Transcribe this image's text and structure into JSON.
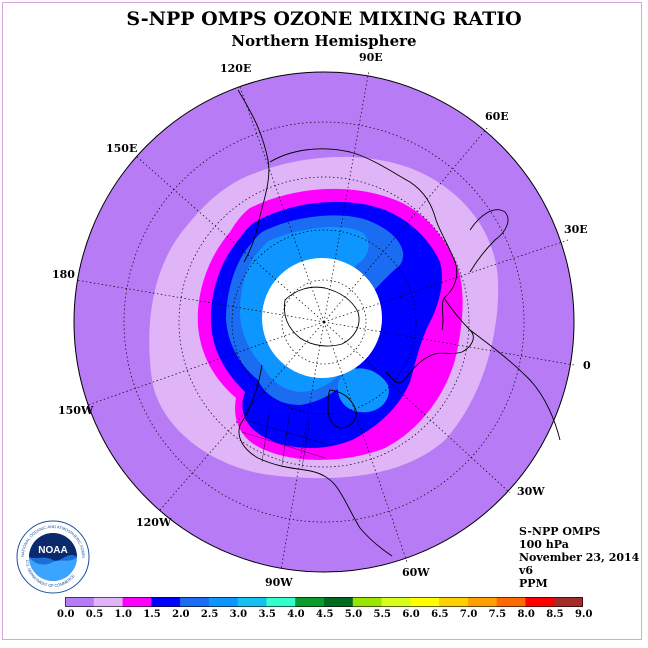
{
  "title": "S-NPP OMPS OZONE MIXING RATIO",
  "subtitle": "Northern Hemisphere",
  "longitude_labels": [
    "90E",
    "60E",
    "30E",
    "0",
    "30W",
    "60W",
    "90W",
    "120W",
    "150W",
    "180",
    "150E",
    "120E"
  ],
  "info": {
    "instrument": "S-NPP OMPS",
    "level": "100 hPa",
    "date": "November 23, 2014",
    "version": "v6",
    "units": "PPM"
  },
  "colorbar": {
    "ticks": [
      "0.0",
      "0.5",
      "1.0",
      "1.5",
      "2.0",
      "2.5",
      "3.0",
      "3.5",
      "4.0",
      "4.5",
      "5.0",
      "5.5",
      "6.0",
      "6.5",
      "7.0",
      "7.5",
      "8.0",
      "8.5",
      "9.0"
    ],
    "colors": [
      "#b77cf5",
      "#e0b5f7",
      "#ff00ff",
      "#0000ff",
      "#1a6cf2",
      "#0d96ff",
      "#14c0f0",
      "#33ffcc",
      "#0b9b2a",
      "#006b1f",
      "#99e600",
      "#d8ff1c",
      "#ffff00",
      "#ffd000",
      "#ffa000",
      "#ff6a00",
      "#ff0000",
      "#a52a2a"
    ]
  },
  "legend_colors": {
    "0.0-0.5": "#b77cf5",
    "0.5-1.0": "#e0b5f7",
    "1.0-1.5": "#ff00ff",
    "1.5-2.0": "#0000ff",
    "2.0-2.5": "#1a6cf2",
    "2.5-3.0": "#0d96ff",
    "no_data_pole": "#ffffff"
  },
  "logo": {
    "text": "NOAA",
    "ring_top": "NATIONAL OCEANIC AND ATMOSPHERIC ADMINISTRATION",
    "ring_bottom": "U.S. DEPARTMENT OF COMMERCE"
  }
}
